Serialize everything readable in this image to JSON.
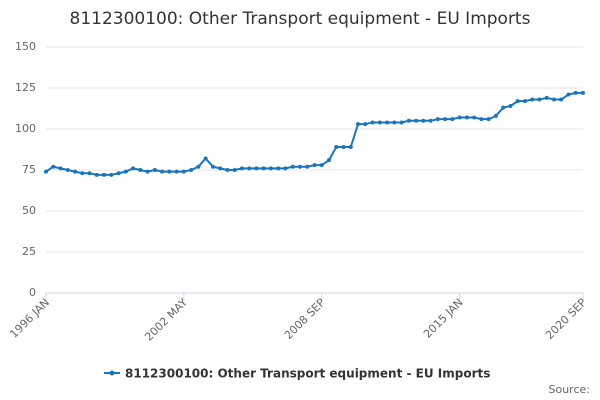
{
  "chart_data": {
    "type": "line",
    "title": "8112300100: Other Transport equipment - EU Imports",
    "source": "Source:",
    "categories": [
      "1996 JAN",
      null,
      null,
      null,
      null,
      null,
      null,
      null,
      null,
      null,
      null,
      null,
      null,
      null,
      null,
      null,
      null,
      null,
      null,
      "2002 MAY",
      null,
      null,
      null,
      null,
      null,
      null,
      null,
      null,
      null,
      null,
      null,
      null,
      null,
      null,
      null,
      null,
      null,
      null,
      "2008 SEP",
      null,
      null,
      null,
      null,
      null,
      null,
      null,
      null,
      null,
      null,
      null,
      null,
      null,
      null,
      null,
      null,
      null,
      null,
      "2015 JAN",
      null,
      null,
      null,
      null,
      null,
      null,
      null,
      null,
      null,
      null,
      null,
      null,
      null,
      null,
      null,
      null,
      "2020 SEP"
    ],
    "series": [
      {
        "name": "8112300100: Other Transport equipment - EU Imports",
        "color": "#1a75bc",
        "values": [
          74,
          77,
          76,
          75,
          74,
          73,
          73,
          72,
          72,
          72,
          73,
          74,
          76,
          75,
          74,
          75,
          74,
          74,
          74,
          74,
          75,
          77,
          82,
          77,
          76,
          75,
          75,
          76,
          76,
          76,
          76,
          76,
          76,
          76,
          77,
          77,
          77,
          78,
          78,
          81,
          89,
          89,
          89,
          103,
          103,
          104,
          104,
          104,
          104,
          104,
          105,
          105,
          105,
          105,
          106,
          106,
          106,
          107,
          107,
          107,
          106,
          106,
          108,
          113,
          114,
          117,
          117,
          118,
          118,
          119,
          118,
          118,
          121,
          122,
          122
        ]
      }
    ],
    "ylim": [
      0,
      150
    ],
    "yticks": [
      0,
      25,
      50,
      75,
      100,
      125,
      150
    ],
    "grid": true
  }
}
